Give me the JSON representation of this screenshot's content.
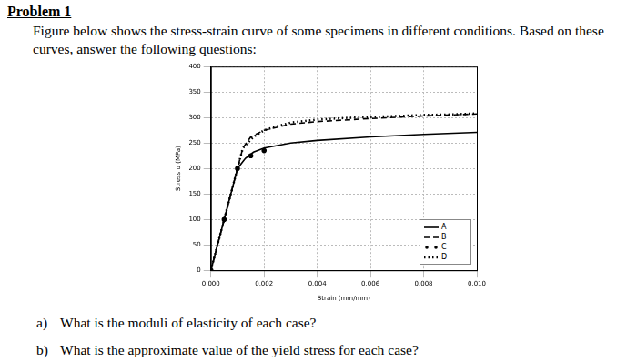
{
  "document": {
    "title": "Problem 1",
    "intro": "Figure below shows the stress-strain curve of some specimens in different conditions. Based on these curves, answer the following questions:",
    "questions": [
      {
        "label": "a)",
        "text": "What is the moduli of elasticity of each case?"
      },
      {
        "label": "b)",
        "text": "What is the approximate value of the yield stress for each case?"
      }
    ]
  },
  "chart_data": {
    "type": "line",
    "x_label": "Strain (mm/mm)",
    "y_label": "Stress σ (MPa)",
    "xlim": [
      0,
      0.01
    ],
    "xticks": [
      {
        "value": 0,
        "label": "0.000"
      },
      {
        "value": 0.002,
        "label": "0.002"
      },
      {
        "value": 0.004,
        "label": "0.004"
      },
      {
        "value": 0.006,
        "label": "0.006"
      },
      {
        "value": 0.008,
        "label": "0.008"
      },
      {
        "value": 0.01,
        "label": "0.010"
      }
    ],
    "ylim": [
      0,
      400
    ],
    "yticks": [
      0,
      50,
      100,
      150,
      200,
      250,
      300,
      350,
      400
    ],
    "grid": true,
    "legend": "lower right",
    "series": [
      {
        "name": "A",
        "color": "#000000",
        "line_style": "solid",
        "x": [
          0,
          0.001,
          0.0013,
          0.0016,
          0.002,
          0.003,
          0.004,
          0.006,
          0.008,
          0.01
        ],
        "values": [
          0,
          200,
          220,
          232,
          240,
          250,
          255,
          262,
          267,
          271
        ]
      },
      {
        "name": "B",
        "color": "#000000",
        "line_style": "dashed",
        "x": [
          0,
          0.0012,
          0.0015,
          0.002,
          0.003,
          0.004,
          0.006,
          0.008,
          0.01
        ],
        "values": [
          0,
          240,
          262,
          275,
          287,
          292,
          298,
          303,
          307
        ]
      },
      {
        "name": "C",
        "color": "#000000",
        "line_style": "none",
        "marker": "circle",
        "x": [
          0,
          0.0005,
          0.001,
          0.0015,
          0.002
        ],
        "values": [
          0,
          100,
          200,
          225,
          235
        ]
      },
      {
        "name": "D",
        "color": "#000000",
        "line_style": "dotted",
        "x": [
          0,
          0.0006,
          0.0012,
          0.0016,
          0.002,
          0.0025,
          0.003,
          0.0035,
          0.004,
          0.005,
          0.006,
          0.007,
          0.008,
          0.009,
          0.01
        ],
        "values": [
          0,
          120,
          240,
          262,
          275,
          283,
          290,
          293,
          296,
          299,
          301,
          303,
          305,
          306,
          308
        ]
      }
    ]
  }
}
